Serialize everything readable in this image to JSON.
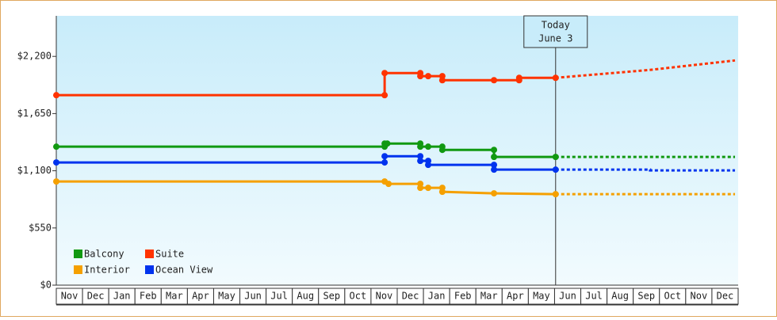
{
  "chart_data": {
    "type": "line",
    "xlim": [
      0,
      26
    ],
    "ylim": [
      0,
      2590
    ],
    "yticks": [
      {
        "value": 0,
        "label": "$0"
      },
      {
        "value": 550,
        "label": "$550"
      },
      {
        "value": 1100,
        "label": "$1,100"
      },
      {
        "value": 1650,
        "label": "$1,650"
      },
      {
        "value": 2200,
        "label": "$2,200"
      }
    ],
    "xticks": [
      {
        "value": 0.5,
        "label": "Nov"
      },
      {
        "value": 1.5,
        "label": "Dec"
      },
      {
        "value": 2.5,
        "label": "Jan"
      },
      {
        "value": 3.5,
        "label": "Feb"
      },
      {
        "value": 4.5,
        "label": "Mar"
      },
      {
        "value": 5.5,
        "label": "Apr"
      },
      {
        "value": 6.5,
        "label": "May"
      },
      {
        "value": 7.5,
        "label": "Jun"
      },
      {
        "value": 8.5,
        "label": "Jul"
      },
      {
        "value": 9.5,
        "label": "Aug"
      },
      {
        "value": 10.5,
        "label": "Sep"
      },
      {
        "value": 11.5,
        "label": "Oct"
      },
      {
        "value": 12.5,
        "label": "Nov"
      },
      {
        "value": 13.5,
        "label": "Dec"
      },
      {
        "value": 14.5,
        "label": "Jan"
      },
      {
        "value": 15.5,
        "label": "Feb"
      },
      {
        "value": 16.5,
        "label": "Mar"
      },
      {
        "value": 17.5,
        "label": "Apr"
      },
      {
        "value": 18.5,
        "label": "May"
      },
      {
        "value": 19.5,
        "label": "Jun"
      },
      {
        "value": 20.5,
        "label": "Jul"
      },
      {
        "value": 21.5,
        "label": "Aug"
      },
      {
        "value": 22.5,
        "label": "Sep"
      },
      {
        "value": 23.5,
        "label": "Oct"
      },
      {
        "value": 24.5,
        "label": "Nov"
      },
      {
        "value": 25.5,
        "label": "Dec"
      }
    ],
    "annotation": {
      "x": 19.04,
      "lines": [
        "Today",
        "June 3"
      ]
    },
    "series": [
      {
        "name": "Balcony",
        "color": "#119911",
        "x": [
          0,
          12.52,
          12.52,
          12.62,
          13.88,
          13.88,
          14.18,
          14.72,
          14.72,
          16.69,
          16.69,
          19.04
        ],
        "values": [
          1332,
          1332,
          1362,
          1362,
          1362,
          1332,
          1332,
          1332,
          1301,
          1301,
          1233,
          1233
        ],
        "forecast": {
          "x": [
            19.04,
            25.88
          ],
          "values": [
            1233,
            1233
          ]
        }
      },
      {
        "name": "Suite",
        "color": "#ff3300",
        "x": [
          0,
          12.52,
          12.52,
          13.88,
          13.88,
          14.18,
          14.72,
          14.72,
          16.69,
          17.65,
          17.65,
          19.04
        ],
        "values": [
          1827,
          1827,
          2040,
          2040,
          2010,
          2010,
          2010,
          1971,
          1971,
          1971,
          1994,
          1994
        ],
        "forecast": {
          "x": [
            19.04,
            22.64,
            25.88
          ],
          "values": [
            1994,
            2070,
            2161
          ]
        }
      },
      {
        "name": "Interior",
        "color": "#f5a000",
        "x": [
          0,
          12.52,
          12.67,
          13.88,
          13.88,
          14.18,
          14.72,
          14.72,
          16.69,
          19.04
        ],
        "values": [
          997,
          997,
          974,
          974,
          936,
          936,
          936,
          898,
          883,
          875
        ],
        "forecast": {
          "x": [
            19.04,
            25.88
          ],
          "values": [
            875,
            875
          ]
        }
      },
      {
        "name": "Ocean View",
        "color": "#0033ee",
        "x": [
          0,
          12.52,
          12.52,
          13.88,
          13.88,
          14.18,
          14.18,
          16.69,
          16.69,
          19.04
        ],
        "values": [
          1180,
          1180,
          1240,
          1240,
          1195,
          1195,
          1157,
          1157,
          1111,
          1111
        ],
        "forecast": {
          "x": [
            19.04,
            22.64,
            22.64,
            25.88
          ],
          "values": [
            1111,
            1111,
            1104,
            1104
          ]
        }
      }
    ]
  }
}
